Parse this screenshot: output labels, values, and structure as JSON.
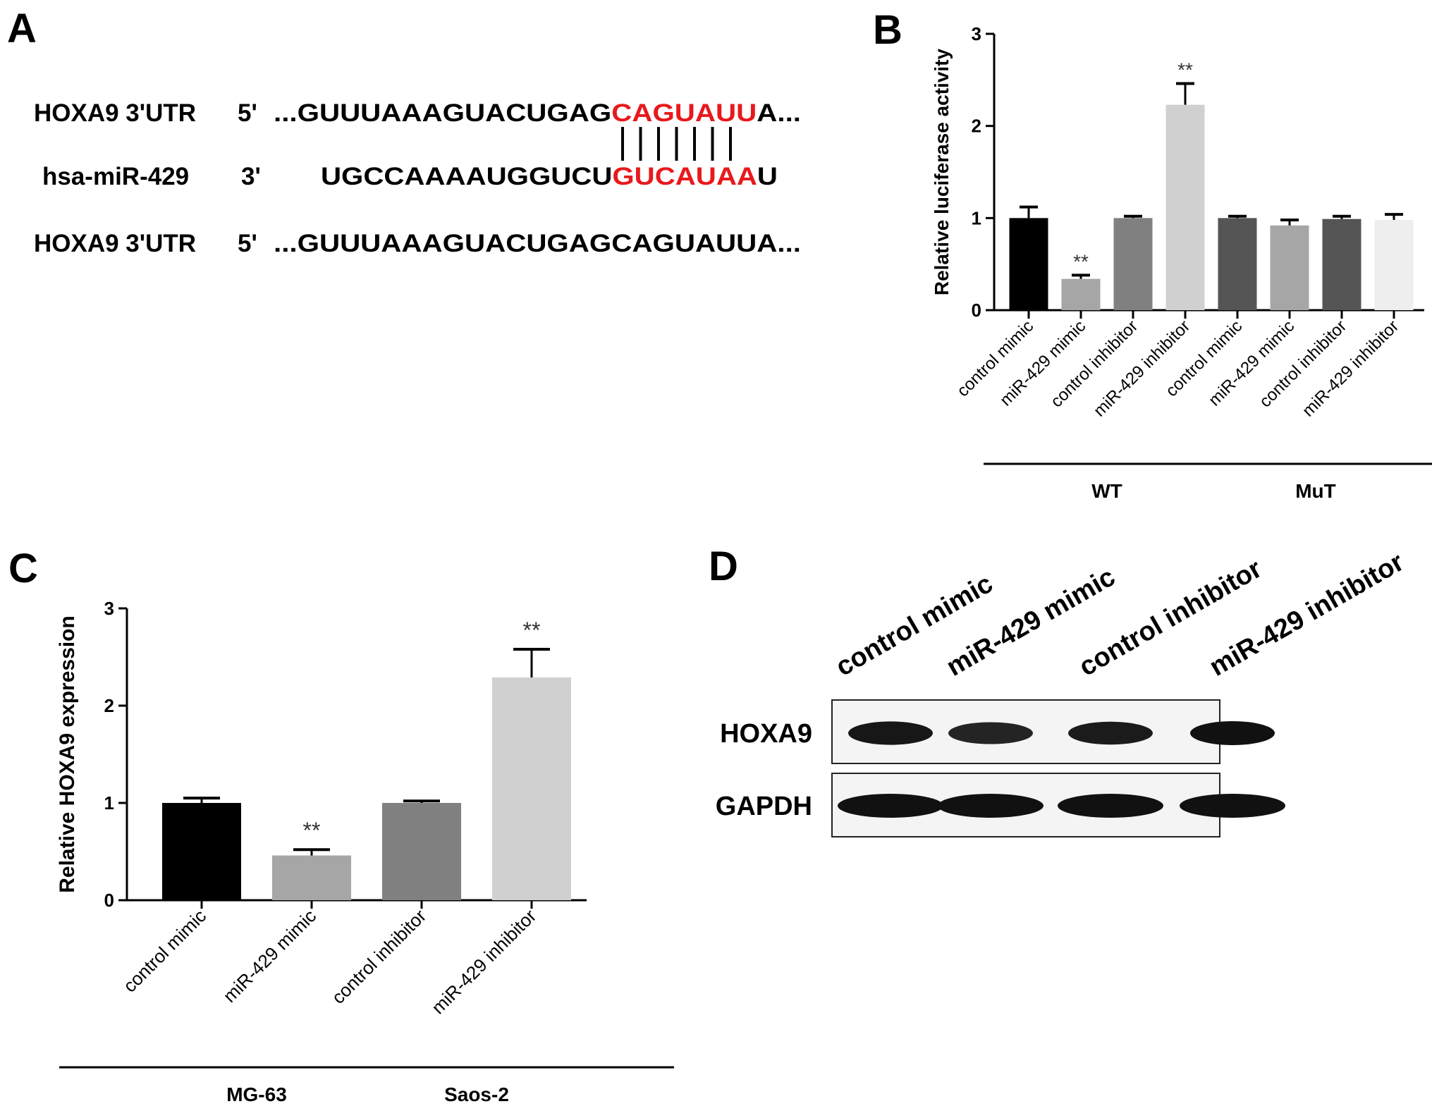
{
  "panels": {
    "a": {
      "letter": "A"
    },
    "b": {
      "letter": "B"
    },
    "c": {
      "letter": "C"
    },
    "d": {
      "letter": "D"
    }
  },
  "sequence": {
    "row1": {
      "name": "HOXA9 3'UTR",
      "end": "5'",
      "prefix": "...GUUUAAAGUACUGAG",
      "highlight": "CAGUAUU",
      "suffix": "A..."
    },
    "row2": {
      "name": "hsa-miR-429",
      "end": "3'",
      "prefix": "UGCCAAAAUGGUCU",
      "highlight": "GUCAUAA",
      "suffix": "U"
    },
    "row3": {
      "name": "HOXA9 3'UTR",
      "end": "5'",
      "text": "...GUUUAAAGUACUGAGCAGUAUUA..."
    },
    "pair_count": 7,
    "highlight_color": "#e8191c"
  },
  "chart_data": [
    {
      "panel": "B",
      "type": "bar",
      "ylabel": "Relative luciferase activity",
      "ylim": [
        0,
        3
      ],
      "yticks": [
        "0",
        "1",
        "2",
        "3"
      ],
      "categories": [
        "control mimic",
        "miR-429 mimic",
        "control inhibitor",
        "miR-429 inhibitor",
        "control mimic",
        "miR-429 mimic",
        "control inhibitor",
        "miR-429 inhibitor"
      ],
      "values": [
        1.0,
        0.34,
        1.0,
        2.23,
        1.0,
        0.92,
        0.99,
        0.98
      ],
      "errors": [
        0.12,
        0.04,
        0.02,
        0.23,
        0.02,
        0.06,
        0.03,
        0.06
      ],
      "significance": [
        "",
        "**",
        "",
        "**",
        "",
        "",
        "",
        ""
      ],
      "colors": [
        "#000000",
        "#a6a6a6",
        "#808080",
        "#d0d0d0",
        "#555555",
        "#a6a6a6",
        "#555555",
        "#eeeeee"
      ],
      "groups": [
        {
          "label": "WT",
          "from": 0,
          "to": 3
        },
        {
          "label": "MuT",
          "from": 4,
          "to": 7
        }
      ]
    },
    {
      "panel": "C",
      "type": "bar",
      "ylabel": "Relative HOXA9  expression",
      "ylim": [
        0,
        3
      ],
      "yticks": [
        "0",
        "1",
        "2",
        "3"
      ],
      "categories": [
        "control mimic",
        "miR-429 mimic",
        "control inhibitor",
        "miR-429 inhibitor"
      ],
      "values": [
        1.0,
        0.46,
        1.0,
        2.29
      ],
      "errors": [
        0.05,
        0.06,
        0.02,
        0.29
      ],
      "significance": [
        "",
        "**",
        "",
        "**"
      ],
      "colors": [
        "#000000",
        "#a6a6a6",
        "#808080",
        "#d0d0d0"
      ],
      "groups": [
        {
          "label": "MG-63",
          "from": 0,
          "to": 1
        },
        {
          "label": "Saos-2",
          "from": 2,
          "to": 3
        }
      ]
    }
  ],
  "blot": {
    "lanes": [
      "control mimic",
      "miR-429 mimic",
      "control inhibitor",
      "miR-429 inhibitor"
    ],
    "rows": [
      {
        "label": "HOXA9",
        "intensity": [
          0.95,
          0.82,
          0.9,
          1.0
        ]
      },
      {
        "label": "GAPDH",
        "intensity": [
          1.0,
          1.0,
          1.0,
          1.0
        ]
      }
    ]
  }
}
